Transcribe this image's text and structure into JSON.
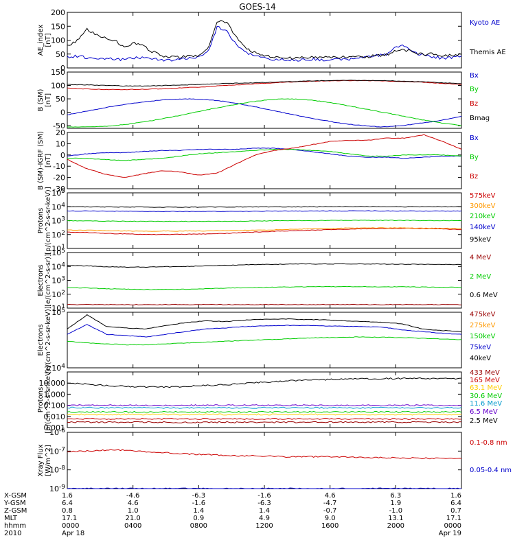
{
  "title": "GOES-14",
  "chart_data": [
    {
      "type": "line",
      "ylabel": "AE_index\n[nT]",
      "yscale": "linear",
      "ylim": [
        0,
        200
      ],
      "yticks": [
        "0",
        "50",
        "100",
        "150",
        "200"
      ],
      "series": [
        {
          "name": "Kyoto AE",
          "color": "#0000cc",
          "values": [
            40,
            42,
            38,
            35,
            34,
            32,
            30,
            35,
            38,
            33,
            30,
            28,
            30,
            35,
            40,
            60,
            150,
            130,
            85,
            55,
            45,
            35,
            30,
            30,
            28,
            30,
            32,
            30,
            28,
            30,
            32,
            35,
            40,
            45,
            48,
            75,
            80,
            55,
            45,
            40,
            35,
            38,
            40
          ]
        },
        {
          "name": "Themis AE",
          "color": "#000000",
          "values": [
            80,
            95,
            140,
            120,
            110,
            100,
            75,
            90,
            80,
            60,
            45,
            40,
            38,
            42,
            45,
            70,
            170,
            165,
            110,
            70,
            55,
            45,
            40,
            35,
            35,
            38,
            40,
            38,
            36,
            38,
            40,
            42,
            40,
            45,
            48,
            60,
            65,
            55,
            50,
            50,
            45,
            45,
            50
          ]
        }
      ]
    },
    {
      "type": "line",
      "ylabel": "B (SM)\n[nT]",
      "yscale": "linear",
      "ylim": [
        -60,
        150
      ],
      "yticks": [
        "-50",
        "0",
        "50",
        "100",
        "150"
      ],
      "series": [
        {
          "name": "Bx",
          "color": "#0000cc",
          "values": [
            -10,
            5,
            18,
            30,
            40,
            47,
            50,
            48,
            40,
            28,
            13,
            -2,
            -17,
            -30,
            -42,
            -50,
            -55,
            -50,
            -40,
            -30,
            -15
          ]
        },
        {
          "name": "By",
          "color": "#00cc00",
          "values": [
            -55,
            -55,
            -52,
            -45,
            -35,
            -22,
            -8,
            8,
            22,
            35,
            45,
            50,
            48,
            40,
            28,
            14,
            0,
            -14,
            -28,
            -40,
            -50
          ]
        },
        {
          "name": "Bz",
          "color": "#cc0000",
          "values": [
            90,
            87,
            85,
            85,
            86,
            88,
            92,
            95,
            100,
            104,
            108,
            112,
            115,
            117,
            118,
            118,
            117,
            115,
            112,
            108,
            104
          ]
        },
        {
          "name": "Bmag",
          "color": "#000000",
          "values": [
            104,
            102,
            100,
            98,
            98,
            100,
            102,
            105,
            107,
            109,
            111,
            113,
            116,
            118,
            119,
            119,
            118,
            116,
            114,
            110,
            107
          ]
        }
      ]
    },
    {
      "type": "line",
      "ylabel": "B (SM)-IGRF (SM)\n[nT]",
      "yscale": "linear",
      "ylim": [
        -30,
        20
      ],
      "yticks": [
        "-30",
        "-20",
        "-10",
        "0",
        "10",
        "20"
      ],
      "series": [
        {
          "name": "Bx",
          "color": "#0000cc",
          "values": [
            -1,
            1,
            2,
            2,
            3,
            4,
            4,
            5,
            5,
            5,
            6,
            6,
            5,
            3,
            1,
            -1,
            -2,
            -2,
            -3,
            -2,
            -1,
            -1
          ]
        },
        {
          "name": "By",
          "color": "#00cc00",
          "values": [
            -3,
            -3,
            -4,
            -5,
            -4,
            -3,
            -1,
            1,
            2,
            3,
            4,
            5,
            5,
            4,
            3,
            1,
            -1,
            -1,
            0,
            0,
            0,
            -1
          ]
        },
        {
          "name": "Bz",
          "color": "#cc0000",
          "values": [
            -4,
            -12,
            -17,
            -20,
            -17,
            -14,
            -15,
            -18,
            -16,
            -8,
            0,
            4,
            6,
            9,
            12,
            13,
            13,
            15,
            15,
            18,
            12,
            5
          ]
        }
      ]
    },
    {
      "type": "line",
      "ylabel": "Protons\n[p/(cm^2-s-sr-keV)]",
      "yscale": "log",
      "ylim": [
        10,
        100000
      ],
      "yticks": [
        "10^1",
        "10^2",
        "10^3",
        "10^4",
        "10^5"
      ],
      "series": [
        {
          "name": "575keV",
          "color": "#cc0000",
          "values": [
            150,
            140,
            120,
            110,
            100,
            100,
            105,
            110,
            120,
            140,
            160,
            180,
            200,
            220,
            240,
            260,
            270,
            280,
            270,
            250,
            230
          ]
        },
        {
          "name": "300keV",
          "color": "#ff9900",
          "values": [
            210,
            200,
            190,
            180,
            175,
            175,
            178,
            180,
            190,
            200,
            210,
            230,
            250,
            270,
            290,
            300,
            300,
            300,
            290,
            280,
            270
          ]
        },
        {
          "name": "210keV",
          "color": "#00cc00",
          "values": [
            1000,
            950,
            920,
            900,
            890,
            880,
            880,
            890,
            900,
            920,
            950,
            980,
            1000,
            1020,
            1040,
            1050,
            1040,
            1030,
            1020,
            1000,
            1000
          ]
        },
        {
          "name": "140keV",
          "color": "#0000cc",
          "values": [
            5000,
            4900,
            4800,
            4700,
            4600,
            4550,
            4550,
            4600,
            4650,
            4700,
            4800,
            4850,
            4900,
            4950,
            5000,
            5050,
            5000,
            4950,
            4900,
            4900,
            4900
          ]
        },
        {
          "name": "95keV",
          "color": "#000000",
          "values": [
            10000,
            9800,
            9600,
            9500,
            9400,
            9300,
            9300,
            9400,
            9500,
            9600,
            9700,
            9800,
            9900,
            10000,
            10100,
            10100,
            10000,
            9900,
            9900,
            10000,
            10000
          ]
        }
      ]
    },
    {
      "type": "line",
      "ylabel": "Electrons\n[e/(cm^2-s-sr)]",
      "yscale": "log",
      "ylim": [
        10,
        100000
      ],
      "yticks": [
        "10^1",
        "10^2",
        "10^3",
        "10^4",
        "10^5"
      ],
      "series": [
        {
          "name": "4 MeV",
          "color": "#990000",
          "values": [
            18,
            18,
            18,
            18,
            18,
            18,
            18,
            18,
            18,
            18,
            18,
            18,
            18,
            18,
            18,
            18,
            18,
            18,
            18,
            18,
            18
          ]
        },
        {
          "name": "2 MeV",
          "color": "#00cc00",
          "values": [
            300,
            280,
            250,
            230,
            220,
            220,
            230,
            250,
            270,
            290,
            310,
            330,
            340,
            345,
            350,
            350,
            345,
            340,
            330,
            320,
            310
          ]
        },
        {
          "name": "0.6 MeV",
          "color": "#000000",
          "values": [
            12000,
            11000,
            9500,
            9000,
            9000,
            9500,
            10000,
            11000,
            12000,
            13000,
            14000,
            14500,
            15000,
            15000,
            15200,
            15000,
            14800,
            14500,
            14200,
            13800,
            13500
          ]
        }
      ]
    },
    {
      "type": "line",
      "ylabel": "Electrons\n[e/(cm^2-s-sr-keV)]",
      "yscale": "log",
      "ylim": [
        10000,
        100000
      ],
      "yticks": [
        "10^4",
        "10^5"
      ],
      "series": [
        {
          "name": "475keV",
          "color": "#990000",
          "values": []
        },
        {
          "name": "275keV",
          "color": "#ff9900",
          "values": []
        },
        {
          "name": "150keV",
          "color": "#00cc00",
          "values": [
            30000,
            28000,
            27000,
            26000,
            26000,
            27000,
            28000,
            29000,
            30000,
            31000,
            32000,
            33000,
            34000,
            35000,
            35500,
            36000,
            35500,
            35000,
            34000,
            33000,
            32000
          ]
        },
        {
          "name": "75keV",
          "color": "#0000cc",
          "values": [
            40000,
            60000,
            40000,
            38000,
            36000,
            40000,
            45000,
            50000,
            52000,
            55000,
            57000,
            58000,
            58000,
            57000,
            56000,
            55000,
            54000,
            48000,
            45000,
            42000,
            40000
          ]
        },
        {
          "name": "40keV",
          "color": "#000000",
          "values": [
            50000,
            90000,
            55000,
            52000,
            50000,
            58000,
            65000,
            70000,
            68000,
            72000,
            75000,
            76000,
            74000,
            73000,
            70000,
            68000,
            66000,
            62000,
            50000,
            47000,
            45000
          ]
        }
      ]
    },
    {
      "type": "line",
      "ylabel": "Protons\n[p/(cm^2-s-sr-keV)]",
      "yscale": "log",
      "ylim": [
        0.001,
        100
      ],
      "yticks": [
        "0.001",
        "0.010",
        "0.100",
        "1.000",
        "10.000"
      ],
      "series": [
        {
          "name": "433 MeV",
          "color": "#990000",
          "values": [
            0.003,
            0.003,
            0.003,
            0.003,
            0.003,
            0.003,
            0.003,
            0.003,
            0.003,
            0.003,
            0.003,
            0.003,
            0.003,
            0.003,
            0.003,
            0.003,
            0.003,
            0.003,
            0.003,
            0.003,
            0.003
          ]
        },
        {
          "name": "165 MeV",
          "color": "#cc0000",
          "values": [
            0.006,
            0.006,
            0.006,
            0.006,
            0.006,
            0.006,
            0.006,
            0.006,
            0.006,
            0.006,
            0.006,
            0.006,
            0.006,
            0.006,
            0.006,
            0.006,
            0.006,
            0.006,
            0.006,
            0.006,
            0.006
          ]
        },
        {
          "name": "63.1 MeV",
          "color": "#ffcc00",
          "values": [
            0.015,
            0.015,
            0.015,
            0.015,
            0.015,
            0.015,
            0.015,
            0.015,
            0.015,
            0.015,
            0.015,
            0.015,
            0.015,
            0.015,
            0.015,
            0.015,
            0.015,
            0.015,
            0.015,
            0.015,
            0.015
          ]
        },
        {
          "name": "30.6 MeV",
          "color": "#00cc00",
          "values": [
            0.025,
            0.025,
            0.025,
            0.025,
            0.025,
            0.025,
            0.025,
            0.025,
            0.025,
            0.025,
            0.025,
            0.025,
            0.025,
            0.025,
            0.025,
            0.025,
            0.025,
            0.025,
            0.025,
            0.025,
            0.025
          ]
        },
        {
          "name": "11.6 MeV",
          "color": "#0099cc",
          "values": [
            0.06,
            0.06,
            0.06,
            0.06,
            0.06,
            0.06,
            0.06,
            0.06,
            0.06,
            0.06,
            0.06,
            0.06,
            0.06,
            0.06,
            0.06,
            0.06,
            0.06,
            0.06,
            0.06,
            0.06,
            0.06
          ]
        },
        {
          "name": "6.5 MeV",
          "color": "#6600cc",
          "values": [
            0.1,
            0.1,
            0.1,
            0.1,
            0.1,
            0.1,
            0.1,
            0.1,
            0.1,
            0.1,
            0.1,
            0.1,
            0.1,
            0.1,
            0.1,
            0.1,
            0.1,
            0.1,
            0.1,
            0.1,
            0.1
          ]
        },
        {
          "name": "2.5 MeV",
          "color": "#000000",
          "values": [
            10,
            8,
            6,
            5,
            4.5,
            4.5,
            5,
            6,
            7,
            9,
            12,
            15,
            18,
            20,
            22,
            24,
            25,
            26,
            26,
            25,
            24
          ]
        }
      ]
    },
    {
      "type": "line",
      "ylabel": "Xray Flux\n[W/m^2]",
      "yscale": "log",
      "ylim": [
        1e-09,
        1e-06
      ],
      "yticks": [
        "10^-9",
        "10^-8",
        "10^-7",
        "10^-6"
      ],
      "series": [
        {
          "name": "0.1-0.8 nm",
          "color": "#cc0000",
          "values": [
            9e-08,
            1e-07,
            1.15e-07,
            1.1e-07,
            9e-08,
            8e-08,
            7e-08,
            6.5e-08,
            6e-08,
            5.5e-08,
            5.5e-08,
            5e-08,
            5e-08,
            5e-08,
            4.8e-08,
            4.5e-08,
            4.5e-08,
            4.3e-08,
            4.2e-08,
            4e-08,
            4e-08
          ]
        },
        {
          "name": "0.05-0.4 nm",
          "color": "#0000cc",
          "values": [
            1e-09,
            1e-09,
            1e-09,
            1e-09,
            1e-09,
            1e-09,
            1e-09,
            1e-09,
            1e-09,
            1e-09,
            1e-09,
            1e-09,
            1e-09,
            1e-09,
            1e-09,
            1e-09,
            1e-09,
            1e-09,
            1e-09,
            1e-09,
            1e-09
          ]
        }
      ]
    }
  ],
  "x_axis": {
    "row_labels": [
      "X-GSM",
      "Y-GSM",
      "Z-GSM",
      "MLT",
      "hhmm",
      "2010"
    ],
    "columns": [
      [
        "1.6",
        "6.4",
        "0.8",
        "17.1",
        "0000",
        "Apr 18"
      ],
      [
        "-4.6",
        "4.6",
        "1.0",
        "21.0",
        "0400",
        ""
      ],
      [
        "-6.3",
        "-1.6",
        "1.4",
        "0.9",
        "0800",
        ""
      ],
      [
        "-1.6",
        "-6.3",
        "1.4",
        "4.9",
        "1200",
        ""
      ],
      [
        "4.6",
        "-4.7",
        "-0.7",
        "9.0",
        "1600",
        ""
      ],
      [
        "6.3",
        "1.9",
        "-1.0",
        "13.1",
        "2000",
        ""
      ],
      [
        "1.6",
        "6.4",
        "0.7",
        "17.1",
        "0000",
        "Apr 19"
      ]
    ]
  }
}
